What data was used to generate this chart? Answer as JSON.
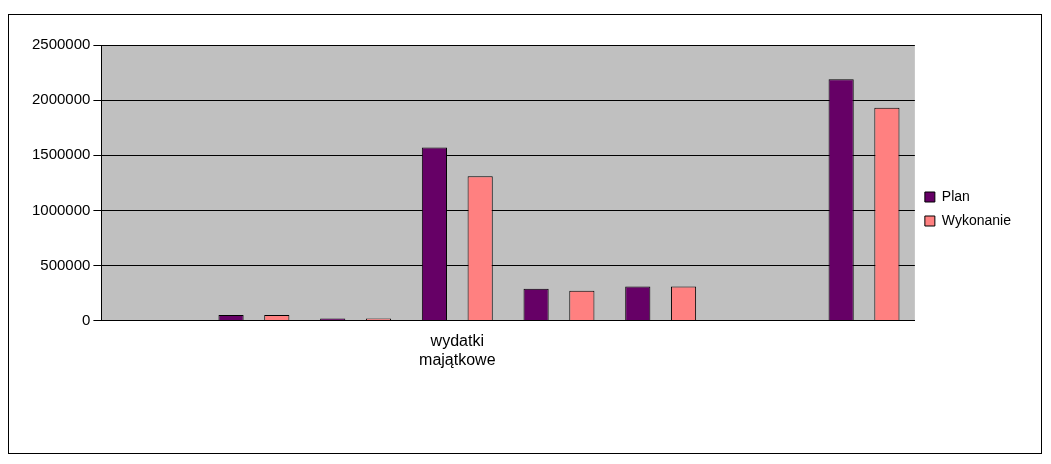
{
  "chart_data": {
    "type": "bar",
    "categories": [
      null,
      null,
      null,
      "wydatki majątkowe",
      null,
      null,
      null,
      null
    ],
    "series": [
      {
        "name": "Plan",
        "color": "#660066",
        "values": [
          null,
          50000,
          20000,
          1570000,
          290000,
          310000,
          null,
          2190000
        ]
      },
      {
        "name": "Wykonanie",
        "color": "#ff8080",
        "values": [
          null,
          50000,
          20000,
          1310000,
          270000,
          310000,
          null,
          1930000
        ]
      }
    ],
    "ylim": [
      0,
      2500000
    ],
    "yticks": [
      0,
      500000,
      1000000,
      1500000,
      2000000,
      2500000
    ],
    "grid": "y",
    "legend": "right"
  }
}
